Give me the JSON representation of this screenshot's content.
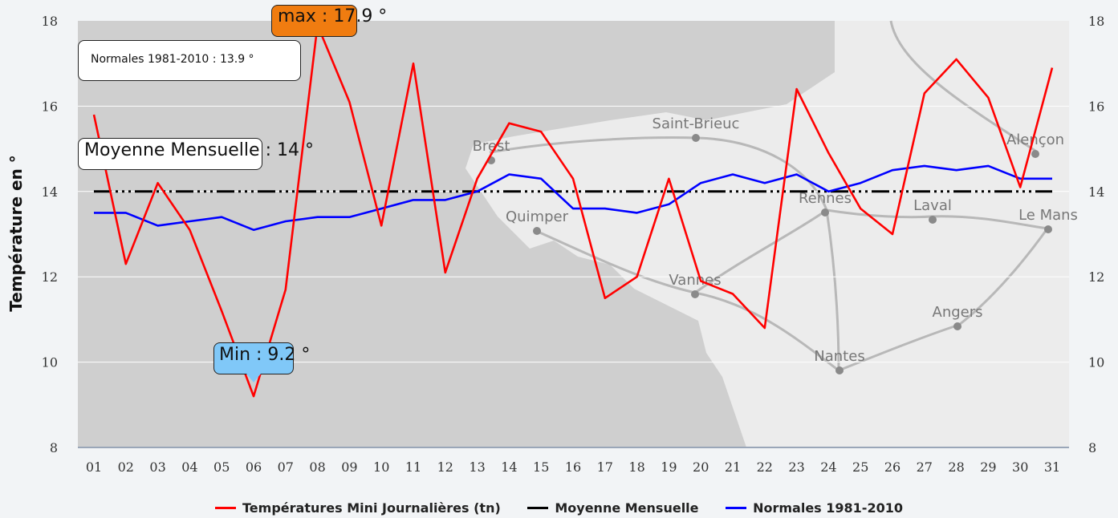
{
  "chart_data": {
    "type": "line",
    "ylabel": "Température en °",
    "ylim": [
      8,
      18
    ],
    "yticks": [
      "8",
      "10",
      "12",
      "14",
      "16",
      "18"
    ],
    "categories": [
      "01",
      "02",
      "03",
      "04",
      "05",
      "06",
      "07",
      "08",
      "09",
      "10",
      "11",
      "12",
      "13",
      "14",
      "15",
      "16",
      "17",
      "18",
      "19",
      "20",
      "21",
      "22",
      "23",
      "24",
      "25",
      "26",
      "27",
      "28",
      "29",
      "30",
      "31"
    ],
    "series": [
      {
        "name": "Températures Mini Journalières (tn)",
        "color": "#ff0000",
        "values": [
          15.8,
          12.3,
          14.2,
          13.1,
          11.2,
          9.2,
          11.7,
          17.9,
          16.1,
          13.2,
          17.0,
          12.1,
          14.3,
          15.6,
          15.4,
          14.3,
          11.5,
          12.0,
          14.3,
          11.9,
          11.6,
          10.8,
          16.4,
          14.9,
          13.6,
          13.0,
          16.3,
          17.1,
          16.2,
          14.1,
          16.9
        ]
      },
      {
        "name": "Moyenne Mensuelle",
        "color": "#000000",
        "style": "dash-dot",
        "values": [
          14,
          14,
          14,
          14,
          14,
          14,
          14,
          14,
          14,
          14,
          14,
          14,
          14,
          14,
          14,
          14,
          14,
          14,
          14,
          14,
          14,
          14,
          14,
          14,
          14,
          14,
          14,
          14,
          14,
          14,
          14
        ]
      },
      {
        "name": "Normales 1981-2010",
        "color": "#0000ff",
        "values": [
          13.5,
          13.5,
          13.2,
          13.3,
          13.4,
          13.1,
          13.3,
          13.4,
          13.4,
          13.6,
          13.8,
          13.8,
          14.0,
          14.4,
          14.3,
          13.6,
          13.6,
          13.5,
          13.7,
          14.2,
          14.4,
          14.2,
          14.4,
          14.0,
          14.2,
          14.5,
          14.6,
          14.5,
          14.6,
          14.3,
          14.3
        ]
      }
    ],
    "annotations": {
      "max": {
        "label": "max : 17.9 °",
        "color": "#f07c10"
      },
      "min": {
        "label": "Min : 9.2 °",
        "color": "#80c8f8"
      },
      "normales": {
        "label": "Normales 1981-2010 : 13.9 °"
      },
      "moyenne": {
        "label": "Moyenne Mensuelle : 14 °"
      }
    },
    "map_labels": [
      "Saint-Brieuc",
      "Brest",
      "Quimper",
      "Vannes",
      "Rennes",
      "Laval",
      "Alençon",
      "Le Mans",
      "Angers",
      "Nantes"
    ],
    "grid": true,
    "legend_position": "bottom"
  }
}
